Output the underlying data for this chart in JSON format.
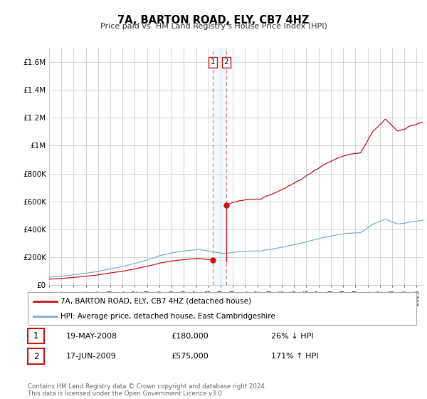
{
  "title": "7A, BARTON ROAD, ELY, CB7 4HZ",
  "subtitle": "Price paid vs. HM Land Registry's House Price Index (HPI)",
  "hpi_color": "#7aadd4",
  "price_color": "#cc1111",
  "vline_color": "#dd4444",
  "vband_color": "#d0e8f5",
  "bg_color": "#ffffff",
  "grid_color": "#cccccc",
  "ylim": [
    0,
    1700000
  ],
  "yticks": [
    0,
    200000,
    400000,
    600000,
    800000,
    1000000,
    1200000,
    1400000,
    1600000
  ],
  "ytick_labels": [
    "£0",
    "£200K",
    "£400K",
    "£600K",
    "£800K",
    "£1M",
    "£1.2M",
    "£1.4M",
    "£1.6M"
  ],
  "xmin": 1995.0,
  "xmax": 2025.5,
  "sale1_year": 2008.37,
  "sale1_price": 180000,
  "sale2_year": 2009.46,
  "sale2_price": 575000,
  "legend_line1": "7A, BARTON ROAD, ELY, CB7 4HZ (detached house)",
  "legend_line2": "HPI: Average price, detached house, East Cambridgeshire",
  "table_row1_date": "19-MAY-2008",
  "table_row1_price": "£180,000",
  "table_row1_hpi": "26% ↓ HPI",
  "table_row2_date": "17-JUN-2009",
  "table_row2_price": "£575,000",
  "table_row2_hpi": "171% ↑ HPI",
  "footer": "Contains HM Land Registry data © Crown copyright and database right 2024.\nThis data is licensed under the Open Government Licence v3.0."
}
